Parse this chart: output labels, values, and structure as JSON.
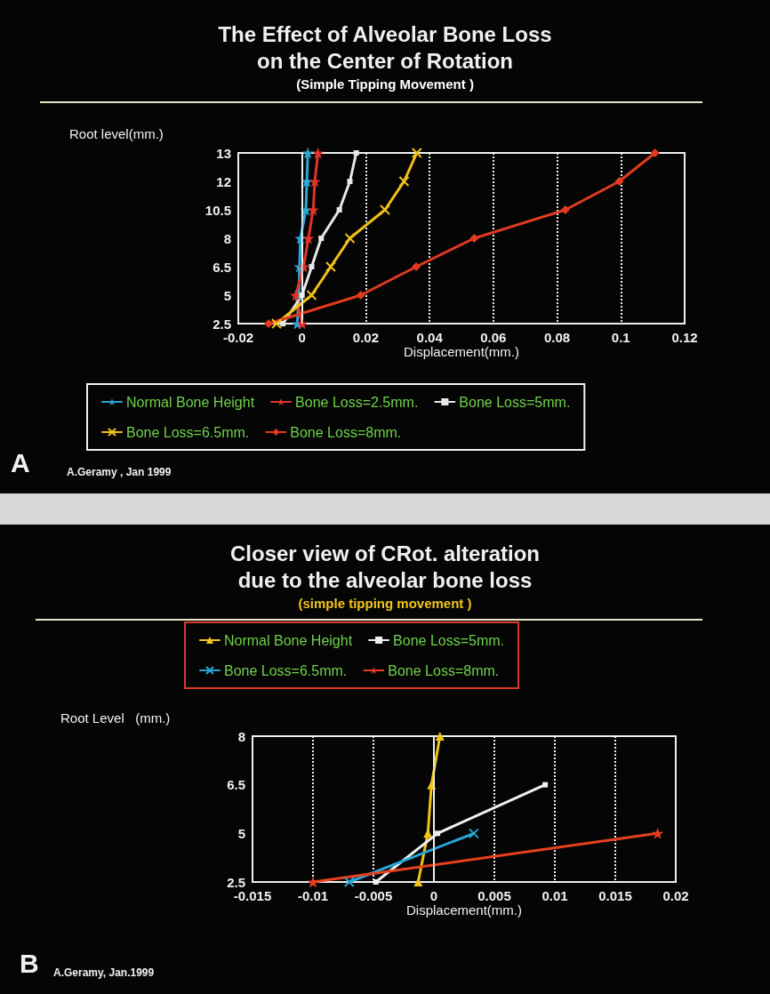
{
  "chart_data": [
    {
      "type": "line",
      "title": "The Effect of Alveolar Bone Loss\non the Center of Rotation",
      "subtitle": "(Simple Tipping Movement )",
      "xlabel": "Displacement(mm.)",
      "ylabel": "Root level(mm.)",
      "orientation": "horizontal",
      "categories": [
        "13",
        "12",
        "10.5",
        "8",
        "6.5",
        "5",
        "2.5"
      ],
      "xlim": [
        -0.02,
        0.12
      ],
      "xticks": [
        -0.02,
        0,
        0.02,
        0.04,
        0.06,
        0.08,
        0.1,
        0.12
      ],
      "grid": "x",
      "legend": "bottom",
      "ref_lines": [
        {
          "axis": "x",
          "value": 0,
          "color": "#f0f0f0",
          "line_style": "solid"
        }
      ],
      "series": [
        {
          "name": "Normal Bone Height",
          "color": "#2aa9d8",
          "marker": "star",
          "values": [
            0.0018,
            0.0015,
            0.0012,
            -0.0005,
            -0.0008,
            -0.001,
            -0.0015
          ]
        },
        {
          "name": "Bone Loss=2.5mm.",
          "color": "#e0332a",
          "marker": "star",
          "values": [
            0.005,
            0.004,
            0.0035,
            0.002,
            0.0005,
            -0.002,
            0
          ]
        },
        {
          "name": "Bone Loss=5mm.",
          "color": "#e8e8e8",
          "marker": "square",
          "values": [
            0.017,
            0.015,
            0.0117,
            0.006,
            0.003,
            0,
            -0.006
          ]
        },
        {
          "name": "Bone Loss=6.5mm.",
          "color": "#f2c21a",
          "marker": "cross",
          "values": [
            0.036,
            0.032,
            0.026,
            0.015,
            0.009,
            0.003,
            -0.008
          ]
        },
        {
          "name": "Bone Loss=8mm.",
          "color": "#e23a1f",
          "marker": "diamond",
          "values": [
            0.1107,
            0.0995,
            0.0826,
            0.054,
            0.0358,
            0.0184,
            -0.0105
          ]
        }
      ],
      "annotations": [
        "A",
        "A.Geramy , Jan 1999"
      ]
    },
    {
      "type": "line",
      "title": "Closer view of CRot. alteration\ndue to the alveolar bone loss",
      "subtitle": "(simple tipping movement )",
      "xlabel": "Displacement(mm.)",
      "ylabel": "Root Level   (mm.)",
      "orientation": "horizontal",
      "categories": [
        "8",
        "6.5",
        "5",
        "2.5"
      ],
      "xlim": [
        -0.015,
        0.02
      ],
      "xticks": [
        -0.015,
        -0.01,
        -0.005,
        0,
        0.005,
        0.01,
        0.015,
        0.02
      ],
      "grid": "x",
      "legend": "top",
      "ref_lines": [
        {
          "axis": "x",
          "value": 0,
          "color": "#f0f0f0",
          "line_style": "solid"
        }
      ],
      "series": [
        {
          "name": "Normal Bone Height",
          "color": "#f0c419",
          "marker": "triangle",
          "values": [
            0.0005,
            -0.0002,
            -0.0005,
            -0.0013
          ]
        },
        {
          "name": "Bone Loss=5mm.",
          "color": "#f0f0f0",
          "marker": "square",
          "values": [
            null,
            0.0092,
            0.0003,
            -0.0048
          ]
        },
        {
          "name": "Bone Loss=6.5mm.",
          "color": "#27a5d6",
          "marker": "cross",
          "values": [
            null,
            null,
            0.0033,
            -0.007
          ]
        },
        {
          "name": "Bone Loss=8mm.",
          "color": "#e8401f",
          "marker": "star",
          "values": [
            null,
            null,
            0.0185,
            -0.01
          ]
        }
      ],
      "annotations": [
        "B",
        "A.Geramy, Jan.1999"
      ]
    }
  ]
}
